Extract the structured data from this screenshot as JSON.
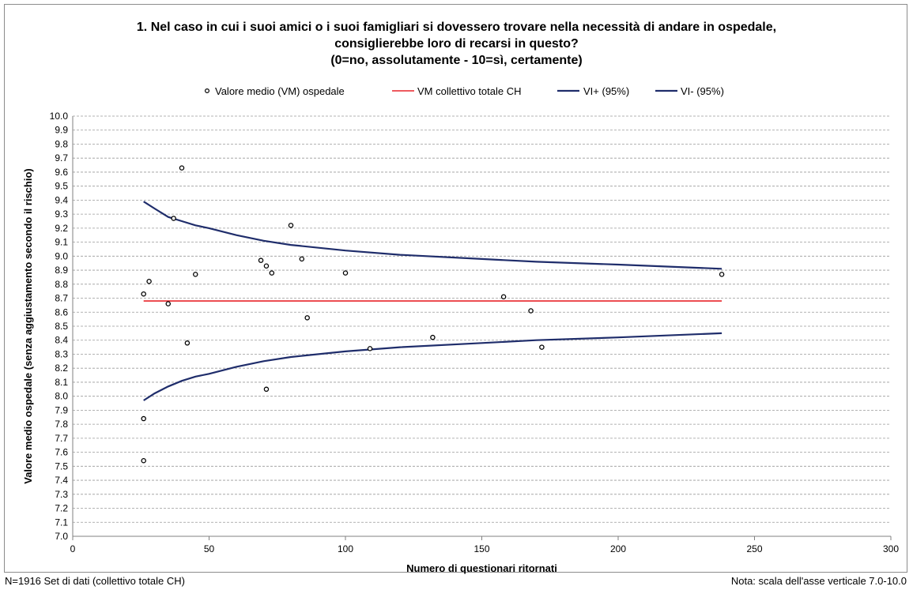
{
  "chart_data": {
    "type": "scatter",
    "title": [
      "1. Nel caso in cui i suoi amici o i suoi famigliari si dovessero trovare nella necessità di andare in ospedale,",
      "consiglierebbe loro di recarsi in questo?",
      "(0=no, assolutamente - 10=sì, certamente)"
    ],
    "xlabel": "Numero di questionari ritornati",
    "ylabel": "Valore medio ospedale (senza aggiustamento secondo il rischio)",
    "xlim": [
      0,
      300
    ],
    "ylim": [
      7.0,
      10.0
    ],
    "x_ticks": [
      0,
      50,
      100,
      150,
      200,
      250,
      300
    ],
    "y_ticks": [
      7.0,
      7.1,
      7.2,
      7.3,
      7.4,
      7.5,
      7.6,
      7.7,
      7.8,
      7.9,
      8.0,
      8.1,
      8.2,
      8.3,
      8.4,
      8.5,
      8.6,
      8.7,
      8.8,
      8.9,
      9.0,
      9.1,
      9.2,
      9.3,
      9.4,
      9.5,
      9.6,
      9.7,
      9.8,
      9.9,
      10.0
    ],
    "grid": "horizontal dashed",
    "legend": [
      "Valore medio (VM) ospedale",
      "VM collettivo totale CH",
      "VI+ (95%)",
      "VI- (95%)"
    ],
    "legend_position": "top",
    "series": [
      {
        "name": "Valore medio (VM) ospedale",
        "kind": "scatter",
        "color": "#000000",
        "points": [
          [
            26,
            8.73
          ],
          [
            26,
            7.84
          ],
          [
            26,
            7.54
          ],
          [
            28,
            8.82
          ],
          [
            35,
            8.66
          ],
          [
            37,
            9.27
          ],
          [
            40,
            9.63
          ],
          [
            42,
            8.38
          ],
          [
            45,
            8.87
          ],
          [
            69,
            8.97
          ],
          [
            71,
            8.93
          ],
          [
            71,
            8.05
          ],
          [
            73,
            8.88
          ],
          [
            80,
            9.22
          ],
          [
            84,
            8.98
          ],
          [
            86,
            8.56
          ],
          [
            100,
            8.88
          ],
          [
            109,
            8.34
          ],
          [
            132,
            8.42
          ],
          [
            158,
            8.71
          ],
          [
            168,
            8.61
          ],
          [
            172,
            8.35
          ],
          [
            238,
            8.87
          ]
        ]
      },
      {
        "name": "VM collettivo totale CH",
        "kind": "line",
        "color": "#e8242a",
        "points": [
          [
            26,
            8.68
          ],
          [
            238,
            8.68
          ]
        ]
      },
      {
        "name": "VI+ (95%)",
        "kind": "line",
        "color": "#1f2d6b",
        "points": [
          [
            26,
            9.39
          ],
          [
            30,
            9.34
          ],
          [
            35,
            9.28
          ],
          [
            40,
            9.25
          ],
          [
            45,
            9.22
          ],
          [
            50,
            9.2
          ],
          [
            60,
            9.15
          ],
          [
            70,
            9.11
          ],
          [
            80,
            9.08
          ],
          [
            100,
            9.04
          ],
          [
            120,
            9.01
          ],
          [
            150,
            8.98
          ],
          [
            170,
            8.96
          ],
          [
            200,
            8.94
          ],
          [
            238,
            8.91
          ]
        ]
      },
      {
        "name": "VI- (95%)",
        "kind": "line",
        "color": "#1f2d6b",
        "points": [
          [
            26,
            7.97
          ],
          [
            30,
            8.02
          ],
          [
            35,
            8.07
          ],
          [
            40,
            8.11
          ],
          [
            45,
            8.14
          ],
          [
            50,
            8.16
          ],
          [
            60,
            8.21
          ],
          [
            70,
            8.25
          ],
          [
            80,
            8.28
          ],
          [
            100,
            8.32
          ],
          [
            120,
            8.35
          ],
          [
            150,
            8.38
          ],
          [
            170,
            8.4
          ],
          [
            200,
            8.42
          ],
          [
            238,
            8.45
          ]
        ]
      }
    ]
  },
  "footer": {
    "left": "N=1916 Set di dati (collettivo totale CH)",
    "right": "Nota: scala dell'asse verticale 7.0-10.0"
  }
}
